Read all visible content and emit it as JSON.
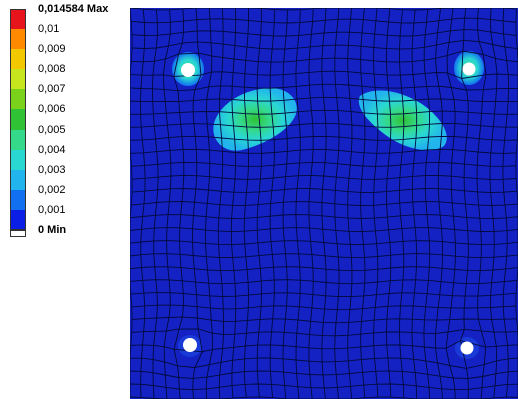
{
  "legend": {
    "max_label": "0,014584 Max",
    "min_label": "0 Min",
    "levels": [
      {
        "label": "0,01",
        "color": "#e8141c"
      },
      {
        "label": "0,009",
        "color": "#ff8a00"
      },
      {
        "label": "0,008",
        "color": "#f2c800"
      },
      {
        "label": "0,007",
        "color": "#c8e61e"
      },
      {
        "label": "0,006",
        "color": "#7ad21a"
      },
      {
        "label": "0,005",
        "color": "#2fc234"
      },
      {
        "label": "0,004",
        "color": "#34d98a"
      },
      {
        "label": "0,003",
        "color": "#2ad8d2"
      },
      {
        "label": "0,002",
        "color": "#22b4ec"
      },
      {
        "label": "0,001",
        "color": "#1170f0"
      },
      {
        "label": "",
        "color": "#0b1ee6"
      }
    ],
    "first_color": "#e8141c",
    "min_color": "#ffffff"
  },
  "view": {
    "background_color": "#1422c4",
    "mesh_line_color": "#000a3c",
    "hole_color": "#ffffff"
  }
}
